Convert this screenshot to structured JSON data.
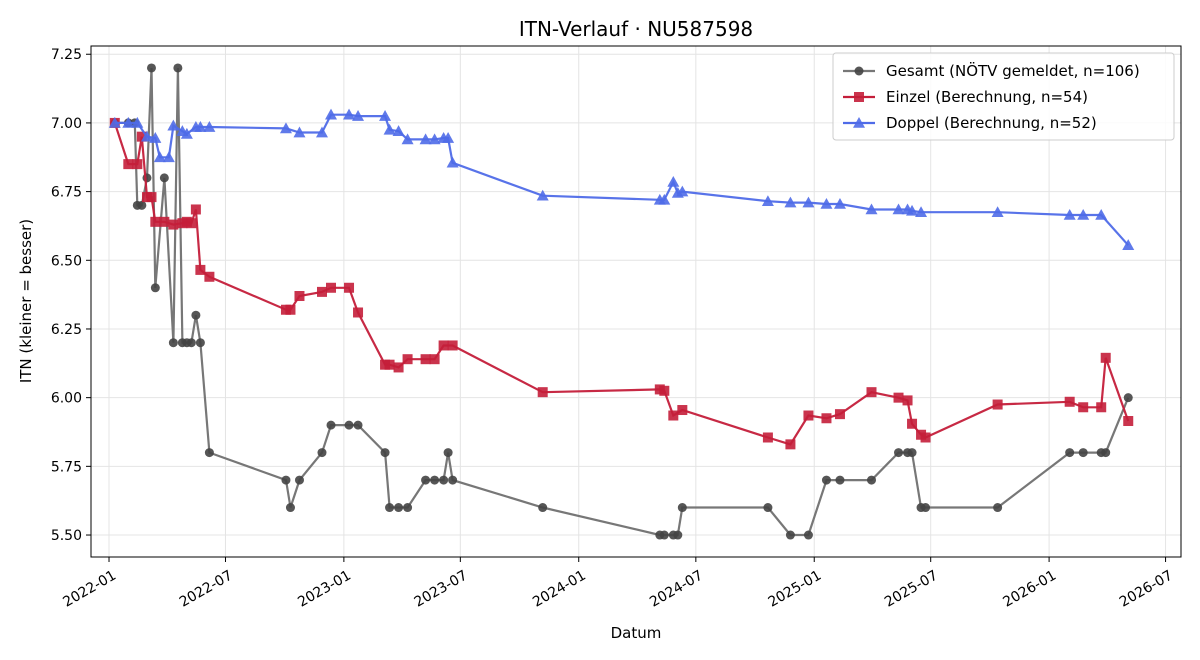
{
  "chart_data": {
    "type": "line",
    "title": "ITN-Verlauf · NU587598",
    "xlabel": "Datum",
    "ylabel": "ITN  (kleiner = besser)",
    "xlim": [
      "2021-12-04",
      "2026-07-25"
    ],
    "ylim": [
      5.42,
      7.28
    ],
    "grid": true,
    "legend_position": "top-right",
    "x_ticks": [
      "2022-01-01",
      "2022-07-01",
      "2023-01-01",
      "2023-07-01",
      "2024-01-01",
      "2024-07-01",
      "2025-01-01",
      "2025-07-01",
      "2026-01-01",
      "2026-07-01"
    ],
    "x_tick_labels": [
      "2022-01",
      "2022-07",
      "2023-01",
      "2023-07",
      "2024-01",
      "2024-07",
      "2025-01",
      "2025-07",
      "2026-01",
      "2026-07"
    ],
    "y_ticks": [
      5.5,
      5.75,
      6.0,
      6.25,
      6.5,
      6.75,
      7.0,
      7.25
    ],
    "y_tick_labels": [
      "5.50",
      "5.75",
      "6.00",
      "6.25",
      "6.50",
      "6.75",
      "7.00",
      "7.25"
    ],
    "series": [
      {
        "name": "Gesamt (NÖTV gemeldet, n=106)",
        "color": "#777777",
        "marker_color": "#444444",
        "marker": "circle",
        "x": [
          "2022-01-10",
          "2022-01-31",
          "2022-02-10",
          "2022-02-14",
          "2022-02-21",
          "2022-03-01",
          "2022-03-08",
          "2022-03-14",
          "2022-03-28",
          "2022-04-11",
          "2022-04-18",
          "2022-04-25",
          "2022-05-02",
          "2022-05-09",
          "2022-05-16",
          "2022-05-23",
          "2022-06-06",
          "2022-10-03",
          "2022-10-10",
          "2022-10-24",
          "2022-11-28",
          "2022-12-12",
          "2023-01-09",
          "2023-01-23",
          "2023-03-06",
          "2023-03-13",
          "2023-03-27",
          "2023-04-10",
          "2023-05-08",
          "2023-05-22",
          "2023-06-05",
          "2023-06-12",
          "2023-06-19",
          "2023-11-06",
          "2024-05-06",
          "2024-05-13",
          "2024-05-27",
          "2024-06-03",
          "2024-06-10",
          "2024-10-21",
          "2024-11-25",
          "2024-12-23",
          "2025-01-20",
          "2025-02-10",
          "2025-03-31",
          "2025-05-12",
          "2025-05-26",
          "2025-06-02",
          "2025-06-16",
          "2025-06-23",
          "2025-10-13",
          "2026-02-02",
          "2026-02-23",
          "2026-03-23",
          "2026-03-30",
          "2026-05-04"
        ],
        "values": [
          7.0,
          7.0,
          7.0,
          6.7,
          6.7,
          6.8,
          7.2,
          6.4,
          6.8,
          6.2,
          7.2,
          6.2,
          6.2,
          6.2,
          6.3,
          6.2,
          5.8,
          5.7,
          5.6,
          5.7,
          5.8,
          5.9,
          5.9,
          5.9,
          5.8,
          5.6,
          5.6,
          5.6,
          5.7,
          5.7,
          5.7,
          5.8,
          5.7,
          5.6,
          5.5,
          5.5,
          5.5,
          5.5,
          5.6,
          5.6,
          5.5,
          5.5,
          5.7,
          5.7,
          5.7,
          5.8,
          5.8,
          5.8,
          5.6,
          5.6,
          5.6,
          5.8,
          5.8,
          5.8,
          5.8,
          6.0
        ]
      },
      {
        "name": "Einzel (Berechnung, n=54)",
        "color": "#c41e3a",
        "marker": "square",
        "x": [
          "2022-01-10",
          "2022-01-31",
          "2022-02-14",
          "2022-02-21",
          "2022-03-01",
          "2022-03-08",
          "2022-03-14",
          "2022-03-28",
          "2022-04-11",
          "2022-04-25",
          "2022-05-02",
          "2022-05-09",
          "2022-05-16",
          "2022-05-23",
          "2022-06-06",
          "2022-10-03",
          "2022-10-10",
          "2022-10-24",
          "2022-11-28",
          "2022-12-12",
          "2023-01-09",
          "2023-01-23",
          "2023-03-06",
          "2023-03-13",
          "2023-03-27",
          "2023-04-10",
          "2023-05-08",
          "2023-05-22",
          "2023-06-05",
          "2023-06-19",
          "2023-11-06",
          "2024-05-06",
          "2024-05-13",
          "2024-05-27",
          "2024-06-10",
          "2024-10-21",
          "2024-11-25",
          "2024-12-23",
          "2025-01-20",
          "2025-02-10",
          "2025-03-31",
          "2025-05-12",
          "2025-05-26",
          "2025-06-02",
          "2025-06-16",
          "2025-06-23",
          "2025-10-13",
          "2026-02-02",
          "2026-02-23",
          "2026-03-23",
          "2026-03-30",
          "2026-05-04"
        ],
        "values": [
          7.0,
          6.85,
          6.85,
          6.95,
          6.73,
          6.73,
          6.64,
          6.64,
          6.63,
          6.635,
          6.64,
          6.635,
          6.685,
          6.465,
          6.44,
          6.32,
          6.32,
          6.37,
          6.385,
          6.4,
          6.4,
          6.31,
          6.12,
          6.12,
          6.11,
          6.14,
          6.14,
          6.14,
          6.19,
          6.19,
          6.02,
          6.03,
          6.025,
          5.935,
          5.955,
          5.855,
          5.83,
          5.935,
          5.925,
          5.94,
          6.02,
          6.0,
          5.99,
          5.905,
          5.865,
          5.855,
          5.975,
          5.985,
          5.965,
          5.965,
          6.145,
          5.915
        ]
      },
      {
        "name": "Doppel (Berechnung, n=52)",
        "color": "#4f6be8",
        "marker": "triangle",
        "x": [
          "2022-01-10",
          "2022-01-31",
          "2022-02-14",
          "2022-03-01",
          "2022-03-14",
          "2022-03-21",
          "2022-04-04",
          "2022-04-11",
          "2022-04-25",
          "2022-05-02",
          "2022-05-16",
          "2022-05-23",
          "2022-06-06",
          "2022-10-03",
          "2022-10-24",
          "2022-11-28",
          "2022-12-12",
          "2023-01-09",
          "2023-01-23",
          "2023-03-06",
          "2023-03-13",
          "2023-03-27",
          "2023-04-10",
          "2023-05-08",
          "2023-05-22",
          "2023-06-05",
          "2023-06-12",
          "2023-06-19",
          "2023-11-06",
          "2024-05-06",
          "2024-05-13",
          "2024-05-27",
          "2024-06-03",
          "2024-06-10",
          "2024-10-21",
          "2024-11-25",
          "2024-12-23",
          "2025-01-20",
          "2025-02-10",
          "2025-03-31",
          "2025-05-12",
          "2025-05-26",
          "2025-06-02",
          "2025-06-16",
          "2025-10-13",
          "2026-02-02",
          "2026-02-23",
          "2026-03-23",
          "2026-05-04"
        ],
        "values": [
          7.0,
          7.0,
          7.0,
          6.95,
          6.945,
          6.875,
          6.875,
          6.99,
          6.97,
          6.96,
          6.985,
          6.985,
          6.985,
          6.98,
          6.965,
          6.965,
          7.03,
          7.03,
          7.025,
          7.025,
          6.975,
          6.97,
          6.94,
          6.94,
          6.94,
          6.945,
          6.945,
          6.855,
          6.735,
          6.72,
          6.72,
          6.785,
          6.745,
          6.75,
          6.715,
          6.71,
          6.71,
          6.705,
          6.705,
          6.685,
          6.685,
          6.685,
          6.68,
          6.675,
          6.675,
          6.665,
          6.665,
          6.665,
          6.555
        ]
      }
    ]
  }
}
